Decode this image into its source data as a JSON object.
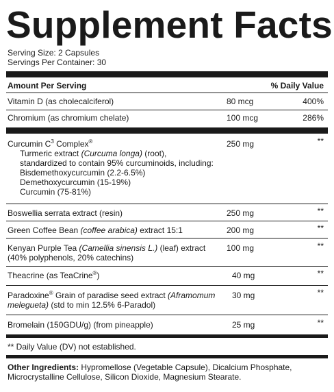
{
  "title": "Supplement Facts",
  "serving_size": "Serving Size: 2 Capsules",
  "servings_per_container": "Servings Per Container: 30",
  "header": {
    "amount_per_serving": "Amount Per Serving",
    "daily_value": "% Daily Value"
  },
  "vitamins": [
    {
      "name": "Vitamin D (as cholecalciferol)",
      "amount": "80 mcg",
      "dv": "400%"
    },
    {
      "name": "Chromium (as chromium chelate)",
      "amount": "100 mcg",
      "dv": "286%"
    }
  ],
  "curcumin": {
    "name": "Curcumin C",
    "name_sup": "3",
    "name_rest": " Complex",
    "name_mark": "®",
    "amount": "250 mg",
    "dv": "**",
    "line1_a": "Turmeric extract ",
    "line1_i": "(Curcuma longa)",
    "line1_b": " (root),",
    "line2": "standardized to contain 95% curcuminoids, including:",
    "line3": "Bisdemethoxycurcumin (2.2-6.5%)",
    "line4": "Demethoxycurcumin (15-19%)",
    "line5": "Curcumin (75-81%)"
  },
  "boswellia": {
    "name": "Boswellia serrata extract (resin)",
    "amount": "250 mg",
    "dv": "**"
  },
  "coffee": {
    "name_a": "Green Coffee Bean ",
    "name_i": "(coffee arabica)",
    "name_b": " extract 15:1",
    "amount": "200 mg",
    "dv": "**"
  },
  "tea": {
    "name_a": "Kenyan Purple Tea ",
    "name_i": "(Camellia sinensis L.)",
    "name_b": " (leaf) extract",
    "line2": "(40% polyphenols, 20% catechins)",
    "amount": "100 mg",
    "dv": "**"
  },
  "theacrine": {
    "name_a": "Theacrine (as TeaCrine",
    "name_mark": "®",
    "name_b": ")",
    "amount": "40 mg",
    "dv": "**"
  },
  "paradoxine": {
    "name_a": "Paradoxine",
    "name_mark": "®",
    "name_b": " Grain of paradise seed extract ",
    "name_i": "(Aframomum",
    "line2_i": "melegueta)",
    "line2_b": " (std to min 12.5% 6-Paradol)",
    "amount": "30 mg",
    "dv": "**"
  },
  "bromelain": {
    "name": "Bromelain (150GDU/g) (from pineapple)",
    "amount": "25 mg",
    "dv": "**"
  },
  "footnote": "** Daily Value (DV) not established.",
  "other_label": "Other Ingredients:",
  "other_line1": " Hypromellose (Vegetable Capsule), Dicalcium Phosphate,",
  "other_line2": "Microcrystalline Cellulose, Silicon Dioxide, Magnesium Stearate."
}
